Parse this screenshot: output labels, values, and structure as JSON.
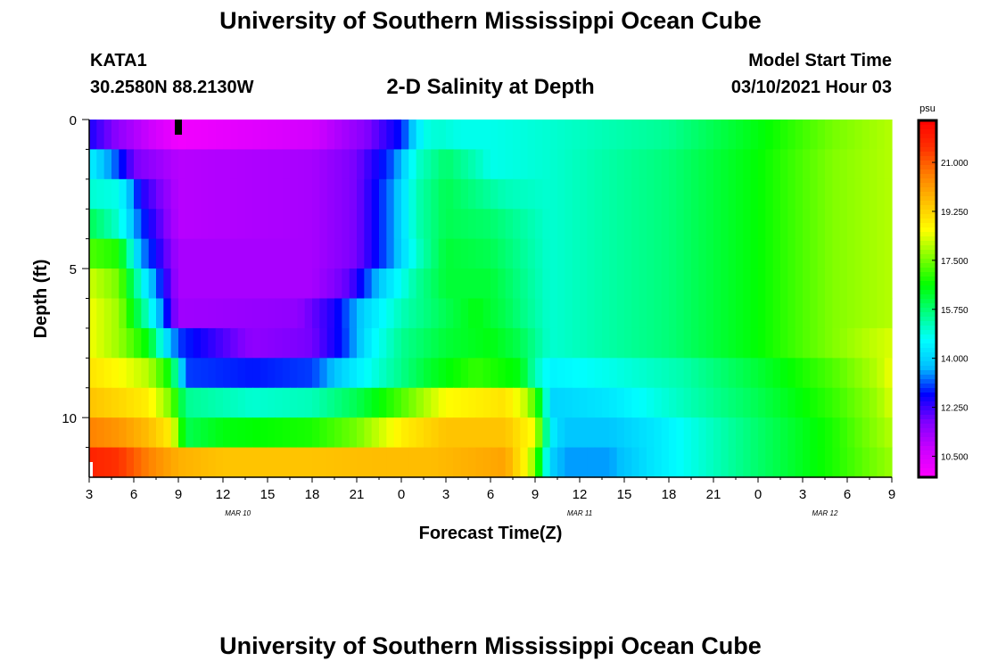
{
  "header": {
    "title": "University of Southern Mississippi Ocean Cube",
    "station": "KATA1",
    "coords": "30.2580N 88.2130W",
    "subtitle": "2-D Salinity at Depth",
    "model_label": "Model Start Time",
    "model_time": "03/10/2021 Hour 03"
  },
  "footer": {
    "title": "University of Southern Mississippi Ocean Cube"
  },
  "chart_data": {
    "type": "heatmap",
    "title": "2-D Salinity at Depth",
    "xlabel": "Forecast Time(Z)",
    "ylabel": "Depth (ft)",
    "x_ticks": [
      "3",
      "6",
      "9",
      "12",
      "15",
      "18",
      "21",
      "0",
      "3",
      "6",
      "9",
      "12",
      "15",
      "18",
      "21",
      "0",
      "3",
      "6",
      "9"
    ],
    "x_date_labels": [
      {
        "label": "MAR 10",
        "at_hour": 13
      },
      {
        "label": "MAR 11",
        "at_hour": 36
      },
      {
        "label": "MAR 12",
        "at_hour": 52.5
      }
    ],
    "x_range_hours": [
      3,
      57
    ],
    "y_ticks": [
      "0",
      "5",
      "10"
    ],
    "y_tick_values": [
      0,
      5,
      10
    ],
    "ylim": [
      0,
      12
    ],
    "colorbar": {
      "unit": "psu",
      "range": [
        9.75,
        22.5
      ],
      "labels": [
        "21.000",
        "19.250",
        "17.500",
        "15.750",
        "14.000",
        "12.250",
        "10.500"
      ],
      "label_values": [
        21.0,
        19.25,
        17.5,
        15.75,
        14.0,
        12.25,
        10.5
      ],
      "colors": [
        "#ff00ff",
        "#cc00ff",
        "#8000ff",
        "#0000ff",
        "#00bfff",
        "#00ffff",
        "#00ff80",
        "#00ff00",
        "#80ff00",
        "#ffff00",
        "#ffc000",
        "#ff8000",
        "#ff3000",
        "#ff0000"
      ]
    },
    "rows_depth_ft": [
      0.5,
      1.5,
      2.5,
      3.5,
      4.5,
      5.5,
      6.5,
      7.5,
      8.5,
      9.5,
      10.5,
      11.5
    ],
    "salinity_keyframes": [
      [
        [
          3,
          12.5
        ],
        [
          5,
          11.5
        ],
        [
          9,
          10
        ],
        [
          18,
          10.6
        ],
        [
          21.5,
          11.6
        ],
        [
          24,
          12.8
        ],
        [
          25.5,
          14.8
        ],
        [
          26.5,
          15
        ],
        [
          28,
          14.8
        ],
        [
          30,
          14.8
        ],
        [
          34,
          15
        ],
        [
          42,
          15.5
        ],
        [
          48,
          16.5
        ],
        [
          53,
          17.5
        ],
        [
          57,
          18
        ]
      ],
      [
        [
          3,
          14.5
        ],
        [
          5,
          13
        ],
        [
          6,
          11.8
        ],
        [
          9,
          11
        ],
        [
          18,
          11.2
        ],
        [
          21,
          11.8
        ],
        [
          23.5,
          13.2
        ],
        [
          25,
          15
        ],
        [
          27,
          15.8
        ],
        [
          29,
          15.2
        ],
        [
          30,
          14.8
        ],
        [
          34,
          15
        ],
        [
          42,
          15.7
        ],
        [
          48,
          16.6
        ],
        [
          53,
          17.6
        ],
        [
          57,
          18
        ]
      ],
      [
        [
          3,
          15
        ],
        [
          5,
          14.8
        ],
        [
          6.5,
          12.5
        ],
        [
          9,
          11
        ],
        [
          18,
          11.2
        ],
        [
          21,
          11.8
        ],
        [
          23.5,
          13.5
        ],
        [
          25,
          15.2
        ],
        [
          27,
          16
        ],
        [
          29,
          15.6
        ],
        [
          31,
          15.2
        ],
        [
          34,
          15
        ],
        [
          42,
          15.7
        ],
        [
          48,
          16.6
        ],
        [
          53,
          17.6
        ],
        [
          57,
          18
        ]
      ],
      [
        [
          3,
          16
        ],
        [
          5,
          15
        ],
        [
          6.5,
          13
        ],
        [
          9,
          11
        ],
        [
          18,
          11.2
        ],
        [
          21,
          11.8
        ],
        [
          23.5,
          13.5
        ],
        [
          25,
          15.2
        ],
        [
          27,
          16
        ],
        [
          30,
          15.8
        ],
        [
          34,
          15
        ],
        [
          42,
          15.7
        ],
        [
          48,
          16.6
        ],
        [
          53,
          17.6
        ],
        [
          57,
          18
        ]
      ],
      [
        [
          3,
          17.2
        ],
        [
          5,
          16.8
        ],
        [
          6.5,
          13.5
        ],
        [
          9,
          11.2
        ],
        [
          18,
          11.2
        ],
        [
          21,
          11.8
        ],
        [
          23.5,
          13.5
        ],
        [
          25,
          15
        ],
        [
          27,
          16.2
        ],
        [
          30,
          16
        ],
        [
          34,
          15
        ],
        [
          42,
          15.7
        ],
        [
          48,
          16.6
        ],
        [
          53,
          17.6
        ],
        [
          57,
          18
        ]
      ],
      [
        [
          3,
          18.2
        ],
        [
          5,
          17.5
        ],
        [
          7,
          14
        ],
        [
          9,
          11.2
        ],
        [
          18,
          11.2
        ],
        [
          20.5,
          12
        ],
        [
          22.5,
          13.8
        ],
        [
          25,
          15.4
        ],
        [
          27,
          16.2
        ],
        [
          30,
          16.2
        ],
        [
          34,
          15
        ],
        [
          42,
          15.7
        ],
        [
          48,
          16.6
        ],
        [
          53,
          17.6
        ],
        [
          57,
          18
        ]
      ],
      [
        [
          3,
          18.5
        ],
        [
          5,
          17.8
        ],
        [
          7,
          15
        ],
        [
          9,
          11.3
        ],
        [
          17,
          11.5
        ],
        [
          19.5,
          12.5
        ],
        [
          21.5,
          14
        ],
        [
          24,
          15.2
        ],
        [
          27,
          16
        ],
        [
          29,
          16.5
        ],
        [
          31,
          16
        ],
        [
          34,
          15
        ],
        [
          42,
          15.7
        ],
        [
          48,
          16.6
        ],
        [
          53,
          17.6
        ],
        [
          57,
          18
        ]
      ],
      [
        [
          3,
          18.5
        ],
        [
          5,
          17.8
        ],
        [
          7,
          16.5
        ],
        [
          8,
          14.5
        ],
        [
          9,
          13
        ],
        [
          14,
          11.5
        ],
        [
          18,
          11.8
        ],
        [
          20,
          12.8
        ],
        [
          22,
          14.5
        ],
        [
          24,
          15.5
        ],
        [
          27,
          16.2
        ],
        [
          30,
          16.5
        ],
        [
          32,
          16
        ],
        [
          34,
          15
        ],
        [
          42,
          15.7
        ],
        [
          48,
          16.6
        ],
        [
          53,
          17.6
        ],
        [
          57,
          18.3
        ]
      ],
      [
        [
          3,
          19
        ],
        [
          5,
          18.6
        ],
        [
          7,
          18
        ],
        [
          8.5,
          16.5
        ],
        [
          9.5,
          13
        ],
        [
          14,
          12.8
        ],
        [
          18,
          13
        ],
        [
          20,
          14
        ],
        [
          23,
          15.2
        ],
        [
          26,
          16.3
        ],
        [
          29,
          17
        ],
        [
          32,
          16.5
        ],
        [
          33,
          15.2
        ],
        [
          34,
          14.5
        ],
        [
          38,
          14.8
        ],
        [
          43,
          15.3
        ],
        [
          48,
          16.2
        ],
        [
          53,
          17.2
        ],
        [
          56,
          18
        ],
        [
          57,
          18.5
        ]
      ],
      [
        [
          3,
          19.5
        ],
        [
          5,
          19.2
        ],
        [
          7,
          18.8
        ],
        [
          8.5,
          17.5
        ],
        [
          9.5,
          15.5
        ],
        [
          14,
          15
        ],
        [
          18,
          15.2
        ],
        [
          21,
          16
        ],
        [
          24,
          17.2
        ],
        [
          27,
          18.6
        ],
        [
          31,
          19
        ],
        [
          32.5,
          18
        ],
        [
          33.5,
          16
        ],
        [
          34,
          14
        ],
        [
          38,
          14.3
        ],
        [
          42,
          15
        ],
        [
          48,
          16
        ],
        [
          53,
          17
        ],
        [
          56,
          17.8
        ],
        [
          57,
          18.3
        ]
      ],
      [
        [
          3,
          20.5
        ],
        [
          5,
          20.2
        ],
        [
          7,
          19.6
        ],
        [
          8.5,
          18.8
        ],
        [
          9.5,
          16
        ],
        [
          12,
          16.5
        ],
        [
          18,
          16.8
        ],
        [
          21,
          17.5
        ],
        [
          24,
          18.8
        ],
        [
          27,
          19.5
        ],
        [
          31,
          19.5
        ],
        [
          33,
          18.5
        ],
        [
          34,
          14.5
        ],
        [
          35,
          13.8
        ],
        [
          38,
          13.8
        ],
        [
          41,
          14.3
        ],
        [
          48,
          15.8
        ],
        [
          53,
          16.8
        ],
        [
          57,
          18
        ]
      ],
      [
        [
          3,
          21.8
        ],
        [
          5,
          21.5
        ],
        [
          7,
          20.5
        ],
        [
          9,
          19.8
        ],
        [
          12,
          19.5
        ],
        [
          18,
          19.5
        ],
        [
          22,
          19.6
        ],
        [
          26,
          19.6
        ],
        [
          31,
          20
        ],
        [
          32.5,
          18.5
        ],
        [
          33,
          17.5
        ],
        [
          34,
          14
        ],
        [
          35,
          13.5
        ],
        [
          38,
          13.5
        ],
        [
          41,
          14.3
        ],
        [
          48,
          15.8
        ],
        [
          53,
          16.8
        ],
        [
          57,
          17.8
        ]
      ]
    ]
  }
}
